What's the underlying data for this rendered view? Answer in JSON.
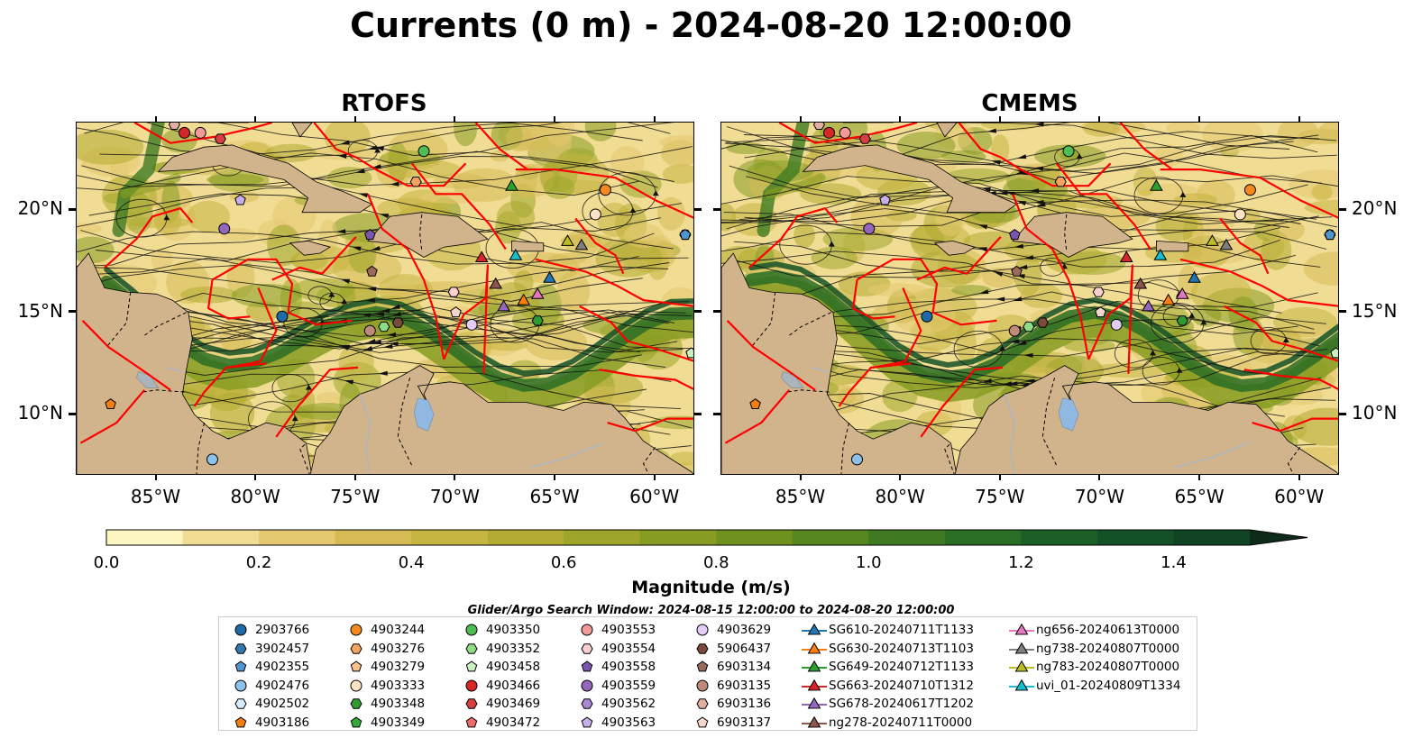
{
  "title": "Currents (0 m) - 2024-08-20 12:00:00",
  "panels": [
    {
      "title": "RTOFS"
    },
    {
      "title": "CMEMS"
    }
  ],
  "lon_ticks": [
    "85°W",
    "80°W",
    "75°W",
    "70°W",
    "65°W",
    "60°W"
  ],
  "lat_ticks": [
    "20°N",
    "15°N",
    "10°N"
  ],
  "map_extent": {
    "lon_min": -89,
    "lon_max": -58,
    "lat_min": 7,
    "lat_max": 24.3
  },
  "colorbar": {
    "ticks": [
      "0.0",
      "0.2",
      "0.4",
      "0.6",
      "0.8",
      "1.0",
      "1.2",
      "1.4"
    ],
    "label": "Magnitude (m/s)",
    "vmin": 0,
    "vmax": 1.5,
    "extend": "max",
    "colors": [
      "#fdf6c3",
      "#f0dc92",
      "#e3c86f",
      "#d6bb55",
      "#c6b541",
      "#b3ac32",
      "#9da52a",
      "#879c22",
      "#6e911f",
      "#568620",
      "#3f7a23",
      "#2a6d25",
      "#1b5f27",
      "#135127",
      "#114424",
      "#10371f",
      "#0e2b1a"
    ]
  },
  "search_window": "Glider/Argo Search Window: 2024-08-15 12:00:00 to 2024-08-20 12:00:00",
  "colors": {
    "land": "#d2b48c",
    "eez": "#ff0000",
    "lake": "#90b8e0",
    "river": "#a0b8d0"
  },
  "legend": [
    {
      "label": "2903766",
      "marker": "circle",
      "color": "#1f6aa6"
    },
    {
      "label": "3902457",
      "marker": "hexagon",
      "color": "#2f79b5"
    },
    {
      "label": "4902355",
      "marker": "pentagon",
      "color": "#4f95d0"
    },
    {
      "label": "4902476",
      "marker": "circle",
      "color": "#8ec1ea"
    },
    {
      "label": "4902502",
      "marker": "hexagon",
      "color": "#d6ebfb"
    },
    {
      "label": "4903186",
      "marker": "pentagon",
      "color": "#f07f10"
    },
    {
      "label": "4903244",
      "marker": "circle",
      "color": "#f4891f"
    },
    {
      "label": "4903276",
      "marker": "hexagon",
      "color": "#f8a35c"
    },
    {
      "label": "4903279",
      "marker": "pentagon",
      "color": "#fbc08a"
    },
    {
      "label": "4903333",
      "marker": "circle",
      "color": "#fde3c5"
    },
    {
      "label": "4903348",
      "marker": "hexagon",
      "color": "#2f9a2f"
    },
    {
      "label": "4903349",
      "marker": "pentagon",
      "color": "#35a83a"
    },
    {
      "label": "4903350",
      "marker": "circle",
      "color": "#4fbc55"
    },
    {
      "label": "4903352",
      "marker": "hexagon",
      "color": "#8edc86"
    },
    {
      "label": "4903458",
      "marker": "pentagon",
      "color": "#c9f2c0"
    },
    {
      "label": "4903466",
      "marker": "circle",
      "color": "#d62728"
    },
    {
      "label": "4903469",
      "marker": "hexagon",
      "color": "#d84040"
    },
    {
      "label": "4903472",
      "marker": "pentagon",
      "color": "#ec6a6a"
    },
    {
      "label": "4903553",
      "marker": "circle",
      "color": "#f29a9a"
    },
    {
      "label": "4903554",
      "marker": "hexagon",
      "color": "#fbd0d0"
    },
    {
      "label": "4903558",
      "marker": "pentagon",
      "color": "#7b54b0"
    },
    {
      "label": "4903559",
      "marker": "circle",
      "color": "#9467bd"
    },
    {
      "label": "4903562",
      "marker": "hexagon",
      "color": "#a987d2"
    },
    {
      "label": "4903563",
      "marker": "pentagon",
      "color": "#c7b0ea"
    },
    {
      "label": "4903629",
      "marker": "circle",
      "color": "#e2cdf6"
    },
    {
      "label": "5906437",
      "marker": "hexagon",
      "color": "#7a4a3a"
    },
    {
      "label": "6903134",
      "marker": "pentagon",
      "color": "#9a6a5a"
    },
    {
      "label": "6903135",
      "marker": "circle",
      "color": "#c08a7a"
    },
    {
      "label": "6903136",
      "marker": "hexagon",
      "color": "#e0b0a0"
    },
    {
      "label": "6903137",
      "marker": "pentagon",
      "color": "#f6d6cc"
    },
    {
      "label": "SG610-20240711T1133",
      "marker": "triangle",
      "color": "#1f77b4"
    },
    {
      "label": "SG630-20240713T1103",
      "marker": "triangle",
      "color": "#ff7f0e"
    },
    {
      "label": "SG649-20240712T1133",
      "marker": "triangle",
      "color": "#2ca02c"
    },
    {
      "label": "SG663-20240710T1312",
      "marker": "triangle",
      "color": "#d62728"
    },
    {
      "label": "SG678-20240617T1202",
      "marker": "triangle",
      "color": "#9467bd"
    },
    {
      "label": "ng278-20240711T0000",
      "marker": "triangle",
      "color": "#8c564b"
    },
    {
      "label": "ng656-20240613T0000",
      "marker": "triangle",
      "color": "#e377c2"
    },
    {
      "label": "ng738-20240807T0000",
      "marker": "triangle",
      "color": "#7f7f7f"
    },
    {
      "label": "ng783-20240807T0000",
      "marker": "triangle",
      "color": "#bcbd22"
    },
    {
      "label": "uvi_01-20240809T1334",
      "marker": "triangle",
      "color": "#17becf"
    }
  ],
  "markers": [
    {
      "label": "2903766",
      "lon": -78.7,
      "lat": 14.8
    },
    {
      "label": "3902457",
      "lon": -58.5,
      "lat": 18.8
    },
    {
      "label": "4902355",
      "lon": -58.5,
      "lat": 18.8
    },
    {
      "label": "4902476",
      "lon": -82.2,
      "lat": 7.8
    },
    {
      "label": "4903186",
      "lon": -87.3,
      "lat": 10.5
    },
    {
      "label": "4903244",
      "lon": -62.5,
      "lat": 21.0
    },
    {
      "label": "4903276",
      "lon": -72.0,
      "lat": 21.4
    },
    {
      "label": "4903333",
      "lon": -63.0,
      "lat": 19.8
    },
    {
      "label": "4903348",
      "lon": -65.9,
      "lat": 14.6
    },
    {
      "label": "4903350",
      "lon": -71.6,
      "lat": 22.9
    },
    {
      "label": "4903352",
      "lon": -73.6,
      "lat": 14.3
    },
    {
      "label": "4903458",
      "lon": -58.2,
      "lat": 13.0
    },
    {
      "label": "4903466",
      "lon": -83.6,
      "lat": 23.8
    },
    {
      "label": "4903469",
      "lon": -81.8,
      "lat": 23.5
    },
    {
      "label": "4903553",
      "lon": -82.8,
      "lat": 23.8
    },
    {
      "label": "4903554",
      "lon": -70.1,
      "lat": 16.0
    },
    {
      "label": "4903558",
      "lon": -74.3,
      "lat": 18.8
    },
    {
      "label": "4903559",
      "lon": -81.6,
      "lat": 19.1
    },
    {
      "label": "4903563",
      "lon": -80.8,
      "lat": 20.5
    },
    {
      "label": "4903629",
      "lon": -69.2,
      "lat": 14.4
    },
    {
      "label": "5906437",
      "lon": -72.9,
      "lat": 14.5
    },
    {
      "label": "6903134",
      "lon": -74.2,
      "lat": 17.0
    },
    {
      "label": "6903135",
      "lon": -74.3,
      "lat": 14.1
    },
    {
      "label": "6903136",
      "lon": -84.1,
      "lat": 24.2
    },
    {
      "label": "6903137",
      "lon": -70.0,
      "lat": 15.0
    },
    {
      "label": "SG610-20240711T1133",
      "lon": -65.3,
      "lat": 16.7
    },
    {
      "label": "SG630-20240713T1103",
      "lon": -66.6,
      "lat": 15.6
    },
    {
      "label": "SG649-20240712T1133",
      "lon": -67.2,
      "lat": 21.2
    },
    {
      "label": "SG663-20240710T1312",
      "lon": -68.7,
      "lat": 17.7
    },
    {
      "label": "SG678-20240617T1202",
      "lon": -67.6,
      "lat": 15.3
    },
    {
      "label": "ng278-20240711T0000",
      "lon": -68.0,
      "lat": 16.4
    },
    {
      "label": "ng656-20240613T0000",
      "lon": -65.9,
      "lat": 15.9
    },
    {
      "label": "ng738-20240807T0000",
      "lon": -63.7,
      "lat": 18.3
    },
    {
      "label": "ng783-20240807T0000",
      "lon": -64.4,
      "lat": 18.5
    },
    {
      "label": "uvi_01-20240809T1334",
      "lon": -67.0,
      "lat": 17.8
    }
  ]
}
